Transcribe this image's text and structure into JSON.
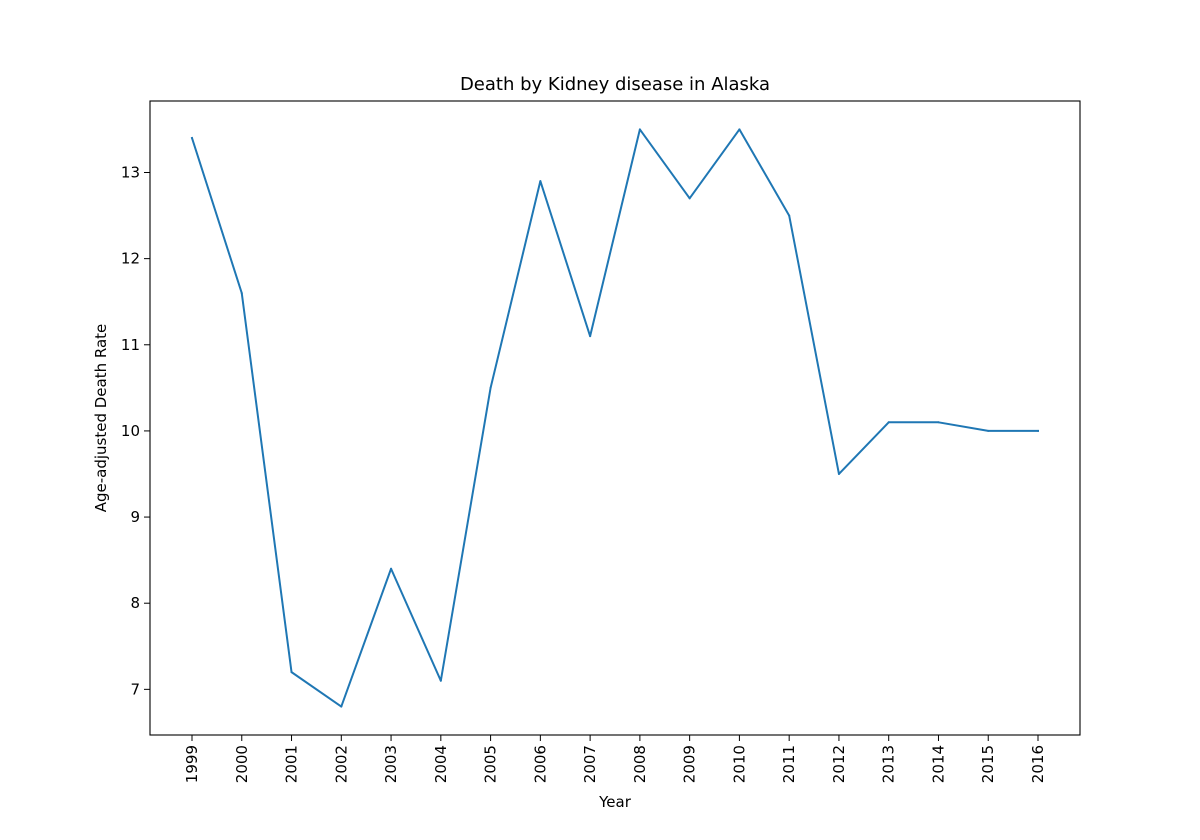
{
  "chart_data": {
    "type": "line",
    "title": "Death by Kidney disease in Alaska",
    "xlabel": "Year",
    "ylabel": "Age-adjusted Death Rate",
    "categories": [
      "1999",
      "2000",
      "2001",
      "2002",
      "2003",
      "2004",
      "2005",
      "2006",
      "2007",
      "2008",
      "2009",
      "2010",
      "2011",
      "2012",
      "2013",
      "2014",
      "2015",
      "2016"
    ],
    "series": [
      {
        "values": [
          13.4,
          11.6,
          7.2,
          6.8,
          8.4,
          7.1,
          10.5,
          12.9,
          11.1,
          13.5,
          12.7,
          13.5,
          12.5,
          9.5,
          10.1,
          10.1,
          10.0,
          10.0
        ],
        "color": "#1f77b4"
      }
    ],
    "y_ticks": [
      7,
      8,
      9,
      10,
      11,
      12,
      13
    ],
    "ylim": [
      6.47,
      13.83
    ],
    "grid": false,
    "legend": false,
    "x_tick_rotation": "vertical"
  }
}
